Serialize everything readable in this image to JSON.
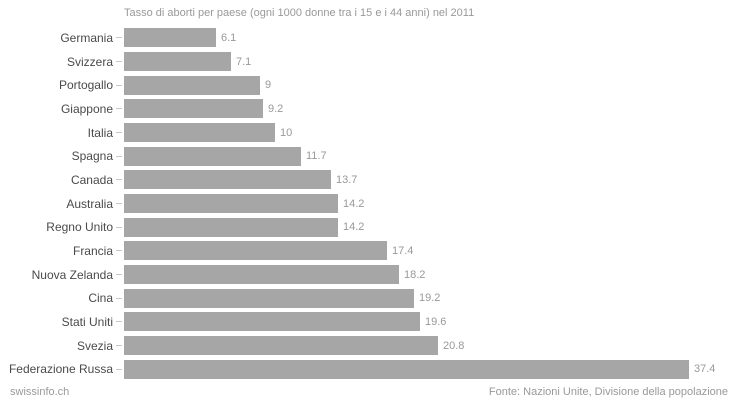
{
  "title": "Tasso di aborti per paese (ogni 1000 donne tra i 15 e i 44 anni) nel 2011",
  "footer": {
    "left": "swissinfo.ch",
    "right": "Fonte: Nazioni Unite, Divisione della popolazione"
  },
  "colors": {
    "background": "#ffffff",
    "bar": "#a6a6a6",
    "category_label": "#4a4a4a",
    "value_label": "#999999",
    "title": "#999999",
    "footer": "#999999",
    "tick": "#c8c8c8"
  },
  "chart_data": {
    "type": "bar",
    "orientation": "horizontal",
    "title": "Tasso di aborti per paese (ogni 1000 donne tra i 15 e i 44 anni) nel 2011",
    "categories": [
      "Germania",
      "Svizzera",
      "Portogallo",
      "Giappone",
      "Italia",
      "Spagna",
      "Canada",
      "Australia",
      "Regno Unito",
      "Francia",
      "Nuova Zelanda",
      "Cina",
      "Stati Uniti",
      "Svezia",
      "Federazione Russa"
    ],
    "values": [
      6.1,
      7.1,
      9,
      9.2,
      10,
      11.7,
      13.7,
      14.2,
      14.2,
      17.4,
      18.2,
      19.2,
      19.6,
      20.8,
      37.4
    ],
    "value_labels": [
      "6.1",
      "7.1",
      "9",
      "9.2",
      "10",
      "11.7",
      "13.7",
      "14.2",
      "14.2",
      "17.4",
      "18.2",
      "19.2",
      "19.6",
      "20.8",
      "37.4"
    ],
    "xlabel": "",
    "ylabel": "",
    "xlim": [
      0,
      40
    ],
    "grid": false,
    "legend": false,
    "data_labels": true,
    "source": "Fonte: Nazioni Unite, Divisione della popolazione"
  }
}
